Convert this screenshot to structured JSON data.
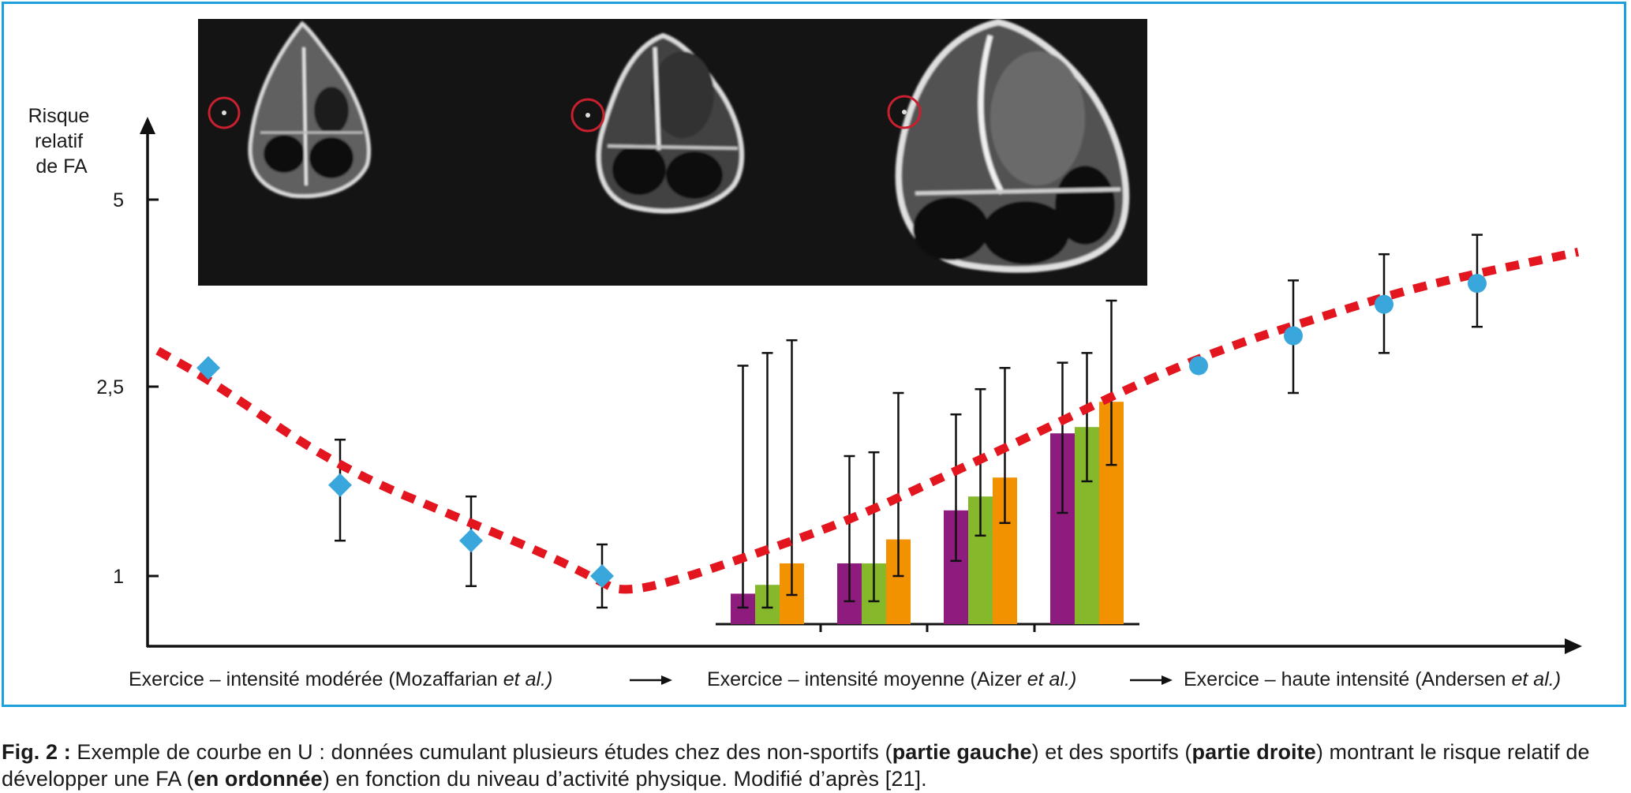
{
  "chart_data": {
    "type": "bar",
    "ylabel": [
      "Risque",
      "relatif",
      "de FA"
    ],
    "y_ticks": [
      {
        "value": 5,
        "label": "5"
      },
      {
        "value": 2.5,
        "label": "2,5"
      },
      {
        "value": 1,
        "label": "1"
      }
    ],
    "x_labels": [
      {
        "text": "Exercice – intensité modérée (Mozaffarian ",
        "italic": "et al.)"
      },
      {
        "text": "Exercice – intensité moyenne (Aizer ",
        "italic": "et al.)"
      },
      {
        "text": "Exercice – haute intensité (Andersen ",
        "italic": "et al.)"
      }
    ],
    "colors": {
      "axis": "#111111",
      "frame": "#1ea0dc",
      "trend": "#e3161f",
      "marker": "#3aa7dc",
      "bar_purple": "#8e1c7e",
      "bar_green": "#86b82c",
      "bar_orange": "#f39200",
      "ring": "#c8202e"
    },
    "series_moderate": [
      {
        "y": 2.75
      },
      {
        "y": 1.72,
        "lo": 1.28,
        "hi": 2.08
      },
      {
        "y": 1.28,
        "lo": 0.92,
        "hi": 1.63
      },
      {
        "y": 1.0,
        "lo": 0.75,
        "hi": 1.25
      }
    ],
    "bar_groups": [
      [
        {
          "v": 0.86,
          "lo": 0.75,
          "hi": 2.78
        },
        {
          "v": 0.93,
          "lo": 0.75,
          "hi": 2.95
        },
        {
          "v": 1.1,
          "lo": 0.85,
          "hi": 3.12
        }
      ],
      [
        {
          "v": 1.1,
          "lo": 0.8,
          "hi": 1.95
        },
        {
          "v": 1.1,
          "lo": 0.8,
          "hi": 1.98
        },
        {
          "v": 1.29,
          "lo": 1.0,
          "hi": 2.45
        }
      ],
      [
        {
          "v": 1.52,
          "lo": 1.12,
          "hi": 2.28
        },
        {
          "v": 1.63,
          "lo": 1.32,
          "hi": 2.48
        },
        {
          "v": 1.78,
          "lo": 1.42,
          "hi": 2.75
        }
      ],
      [
        {
          "v": 2.13,
          "lo": 1.5,
          "hi": 2.82
        },
        {
          "v": 2.18,
          "lo": 1.75,
          "hi": 2.95
        },
        {
          "v": 2.38,
          "lo": 1.88,
          "hi": 3.65
        }
      ]
    ],
    "series_high": [
      {
        "y": 2.78
      },
      {
        "y": 3.18,
        "lo": 2.45,
        "hi": 3.92
      },
      {
        "y": 3.6,
        "lo": 2.95,
        "hi": 4.27
      },
      {
        "y": 3.88,
        "lo": 3.3,
        "hi": 4.53
      }
    ],
    "trend": [
      [
        3.6,
        2.98
      ],
      [
        3.0,
        2.6
      ],
      [
        2.5,
        1.85
      ],
      [
        2.0,
        1.42
      ],
      [
        1.5,
        1.15
      ],
      [
        1.0,
        0.95
      ],
      [
        0.87,
        0.88
      ],
      [
        1.0,
        0.93
      ],
      [
        1.5,
        1.18
      ],
      [
        2.0,
        1.45
      ],
      [
        2.5,
        1.8
      ],
      [
        3.0,
        2.15
      ],
      [
        3.5,
        2.53
      ],
      [
        4.5,
        3.05
      ],
      [
        5.5,
        3.45
      ],
      [
        6.5,
        3.85
      ],
      [
        7.5,
        4.3
      ]
    ]
  },
  "caption": {
    "label": "Fig. 2 :",
    "t1": " Exemple de courbe en U : données cumulant plusieurs études chez des non-sportifs (",
    "b1": "partie gauche",
    "t2": ") et des sportifs (",
    "b2": "partie droite",
    "t3": ") montrant le risque relatif de développer une FA (",
    "b3": "en ordonnée",
    "t4": ") en fonction du niveau d’activité physique. Modifié d’après [21]."
  }
}
